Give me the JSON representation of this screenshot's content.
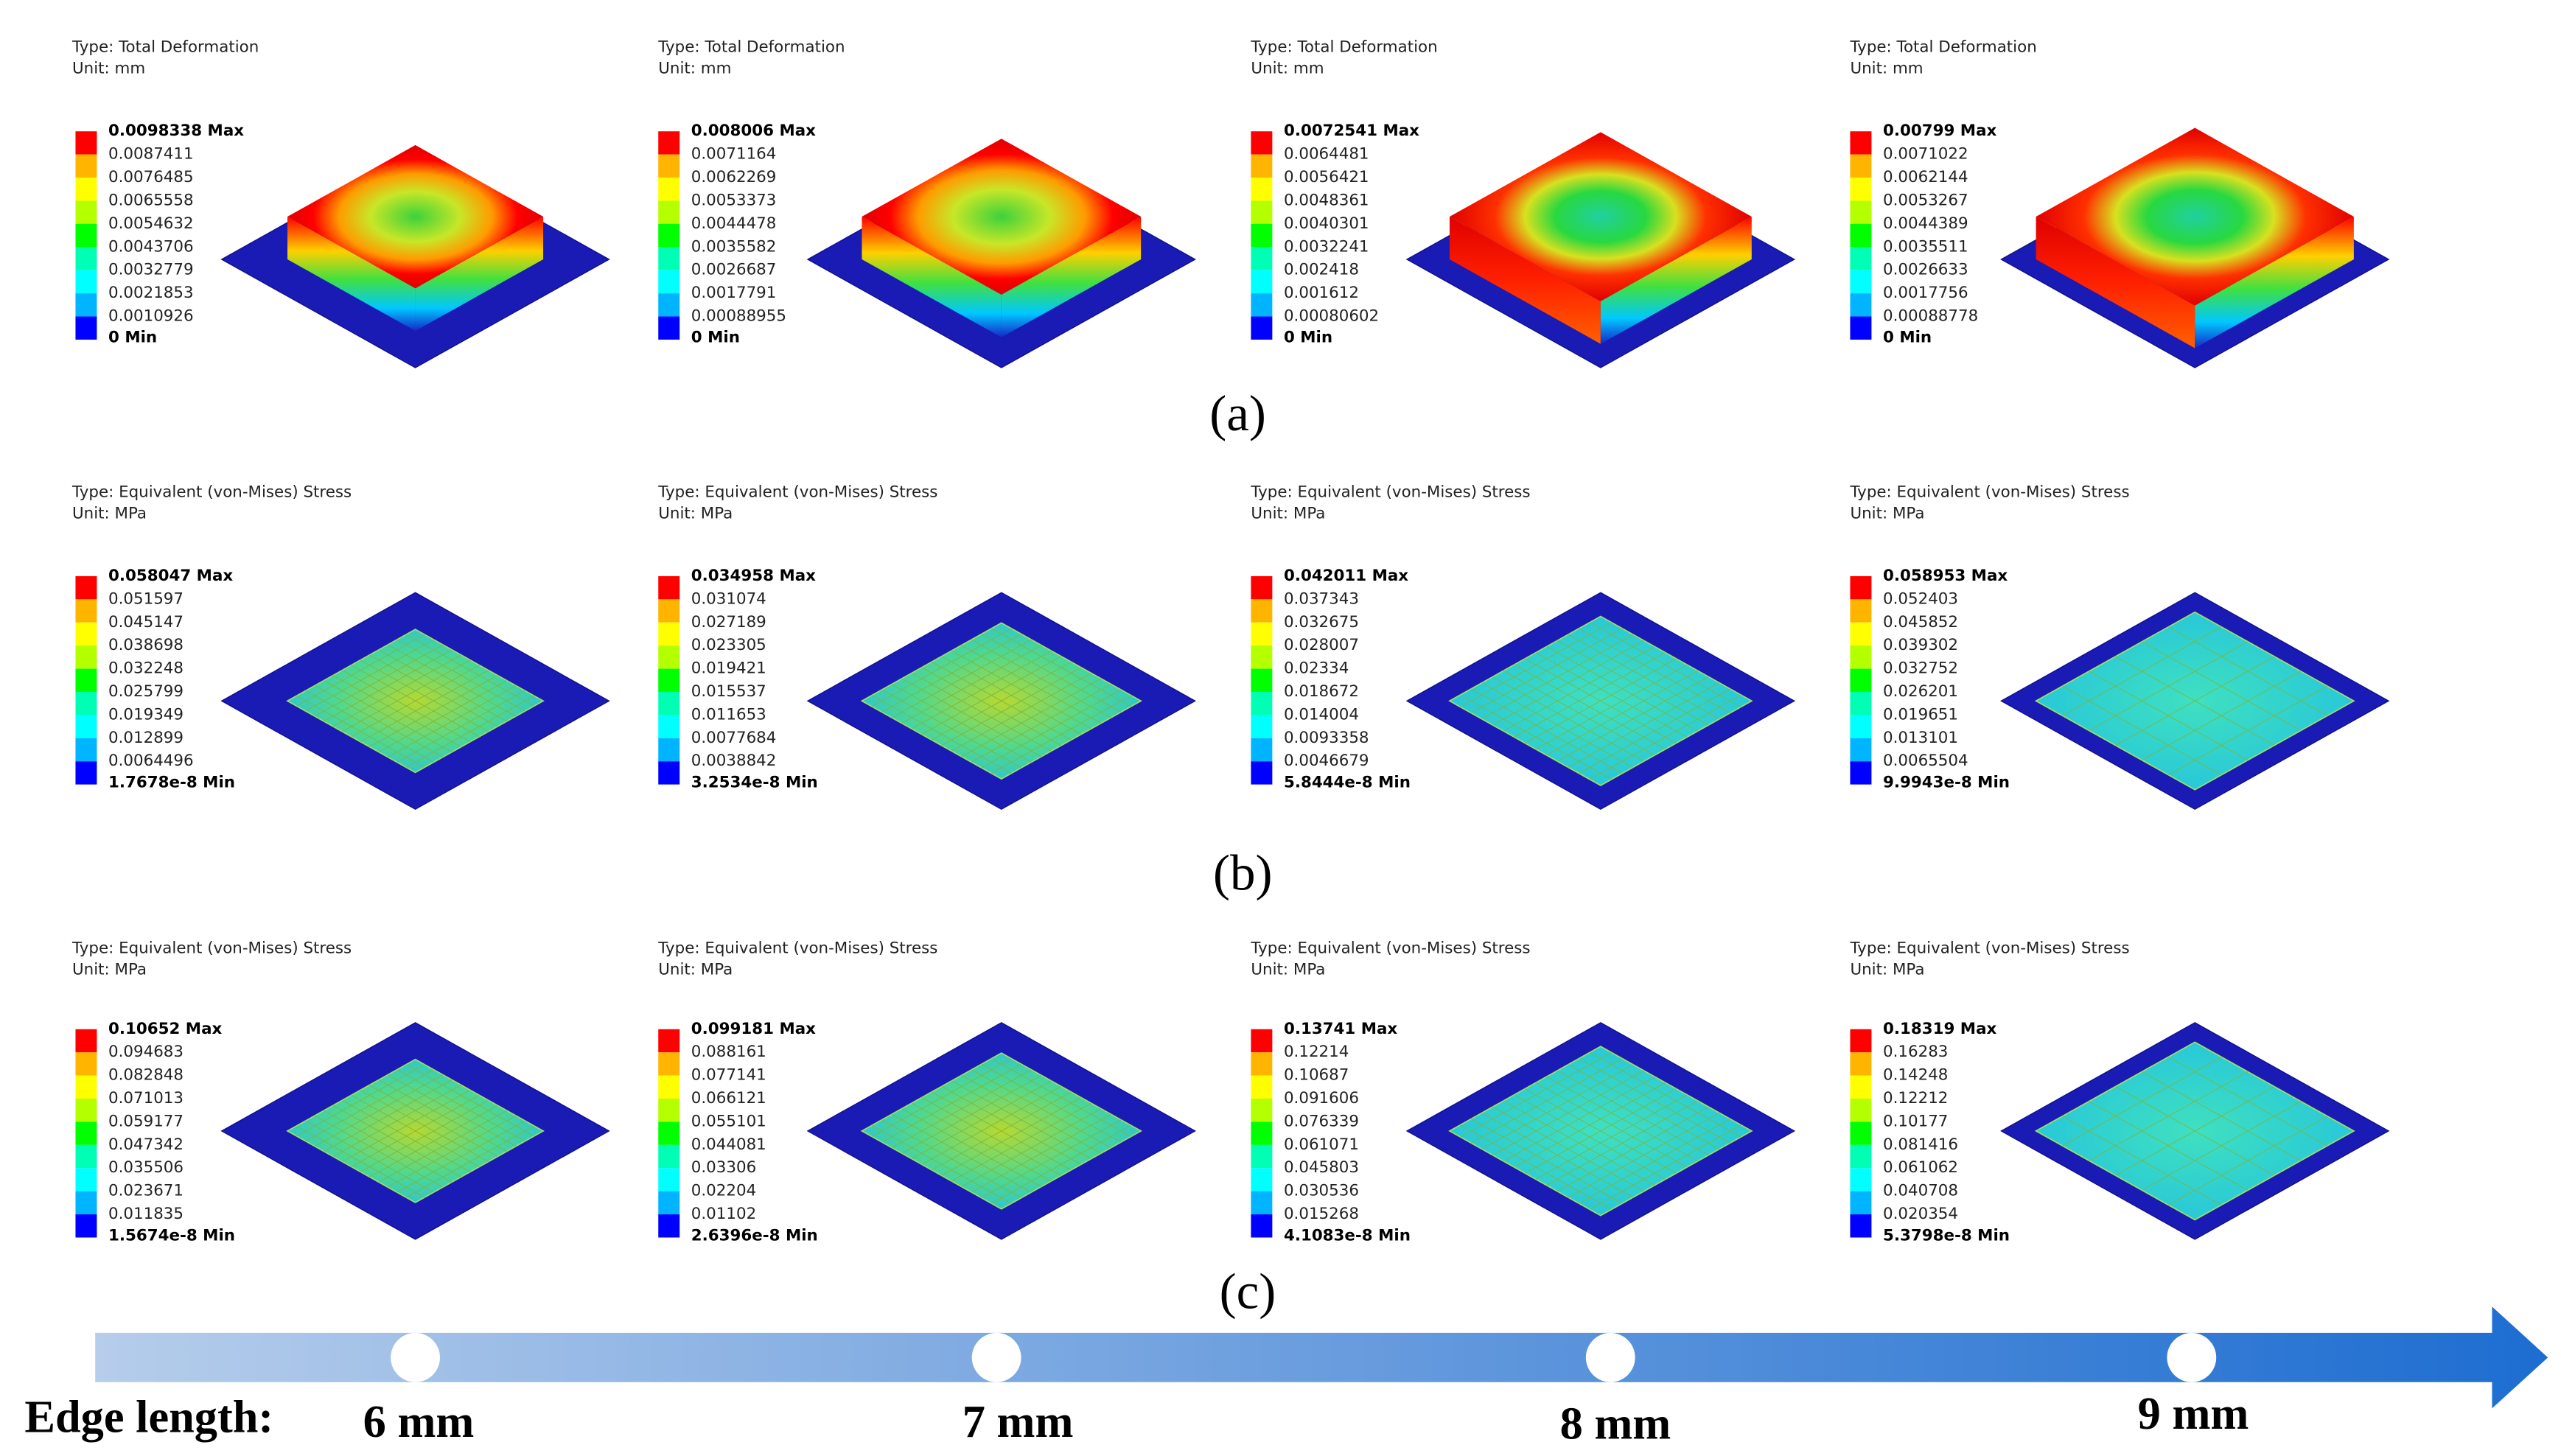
{
  "palette": [
    "#ff0000",
    "#ffb400",
    "#ffff00",
    "#b4ff00",
    "#00ff00",
    "#00ffb4",
    "#00ffff",
    "#00b4ff",
    "#0000ff"
  ],
  "rows": [
    {
      "label": "(a)",
      "panels": [
        {
          "type": "Type: Total Deformation",
          "unit": "Unit: mm",
          "legend": [
            "0.0098338 Max",
            "0.0087411",
            "0.0076485",
            "0.0065558",
            "0.0054632",
            "0.0043706",
            "0.0032779",
            "0.0021853",
            "0.0010926",
            "0 Min"
          ]
        },
        {
          "type": "Type: Total Deformation",
          "unit": "Unit: mm",
          "legend": [
            "0.008006 Max",
            "0.0071164",
            "0.0062269",
            "0.0053373",
            "0.0044478",
            "0.0035582",
            "0.0026687",
            "0.0017791",
            "0.00088955",
            "0 Min"
          ]
        },
        {
          "type": "Type: Total Deformation",
          "unit": "Unit: mm",
          "legend": [
            "0.0072541 Max",
            "0.0064481",
            "0.0056421",
            "0.0048361",
            "0.0040301",
            "0.0032241",
            "0.002418",
            "0.001612",
            "0.00080602",
            "0 Min"
          ]
        },
        {
          "type": "Type: Total Deformation",
          "unit": "Unit: mm",
          "legend": [
            "0.00799 Max",
            "0.0071022",
            "0.0062144",
            "0.0053267",
            "0.0044389",
            "0.0035511",
            "0.0026633",
            "0.0017756",
            "0.00088778",
            "0 Min"
          ]
        }
      ]
    },
    {
      "label": "(b)",
      "panels": [
        {
          "type": "Type: Equivalent (von-Mises) Stress",
          "unit": "Unit: MPa",
          "legend": [
            "0.058047 Max",
            "0.051597",
            "0.045147",
            "0.038698",
            "0.032248",
            "0.025799",
            "0.019349",
            "0.012899",
            "0.0064496",
            "1.7678e-8 Min"
          ]
        },
        {
          "type": "Type: Equivalent (von-Mises) Stress",
          "unit": "Unit: MPa",
          "legend": [
            "0.034958 Max",
            "0.031074",
            "0.027189",
            "0.023305",
            "0.019421",
            "0.015537",
            "0.011653",
            "0.0077684",
            "0.0038842",
            "3.2534e-8 Min"
          ]
        },
        {
          "type": "Type: Equivalent (von-Mises) Stress",
          "unit": "Unit: MPa",
          "legend": [
            "0.042011 Max",
            "0.037343",
            "0.032675",
            "0.028007",
            "0.02334",
            "0.018672",
            "0.014004",
            "0.0093358",
            "0.0046679",
            "5.8444e-8 Min"
          ]
        },
        {
          "type": "Type: Equivalent (von-Mises) Stress",
          "unit": "Unit: MPa",
          "legend": [
            "0.058953 Max",
            "0.052403",
            "0.045852",
            "0.039302",
            "0.032752",
            "0.026201",
            "0.019651",
            "0.013101",
            "0.0065504",
            "9.9943e-8 Min"
          ]
        }
      ]
    },
    {
      "label": "(c)",
      "panels": [
        {
          "type": "Type: Equivalent (von-Mises) Stress",
          "unit": "Unit: MPa",
          "legend": [
            "0.10652 Max",
            "0.094683",
            "0.082848",
            "0.071013",
            "0.059177",
            "0.047342",
            "0.035506",
            "0.023671",
            "0.011835",
            "1.5674e-8 Min"
          ]
        },
        {
          "type": "Type: Equivalent (von-Mises) Stress",
          "unit": "Unit: MPa",
          "legend": [
            "0.099181 Max",
            "0.088161",
            "0.077141",
            "0.066121",
            "0.055101",
            "0.044081",
            "0.03306",
            "0.02204",
            "0.01102",
            "2.6396e-8 Min"
          ]
        },
        {
          "type": "Type: Equivalent (von-Mises) Stress",
          "unit": "Unit: MPa",
          "legend": [
            "0.13741 Max",
            "0.12214",
            "0.10687",
            "0.091606",
            "0.076339",
            "0.061071",
            "0.045803",
            "0.030536",
            "0.015268",
            "4.1083e-8 Min"
          ]
        },
        {
          "type": "Type: Equivalent (von-Mises) Stress",
          "unit": "Unit: MPa",
          "legend": [
            "0.18319 Max",
            "0.16283",
            "0.14248",
            "0.12212",
            "0.10177",
            "0.081416",
            "0.061062",
            "0.040708",
            "0.020354",
            "5.3798e-8 Min"
          ]
        }
      ]
    }
  ],
  "timeline": {
    "title": "Edge length:",
    "ticks": [
      "6 mm",
      "7 mm",
      "8 mm",
      "9 mm"
    ]
  }
}
